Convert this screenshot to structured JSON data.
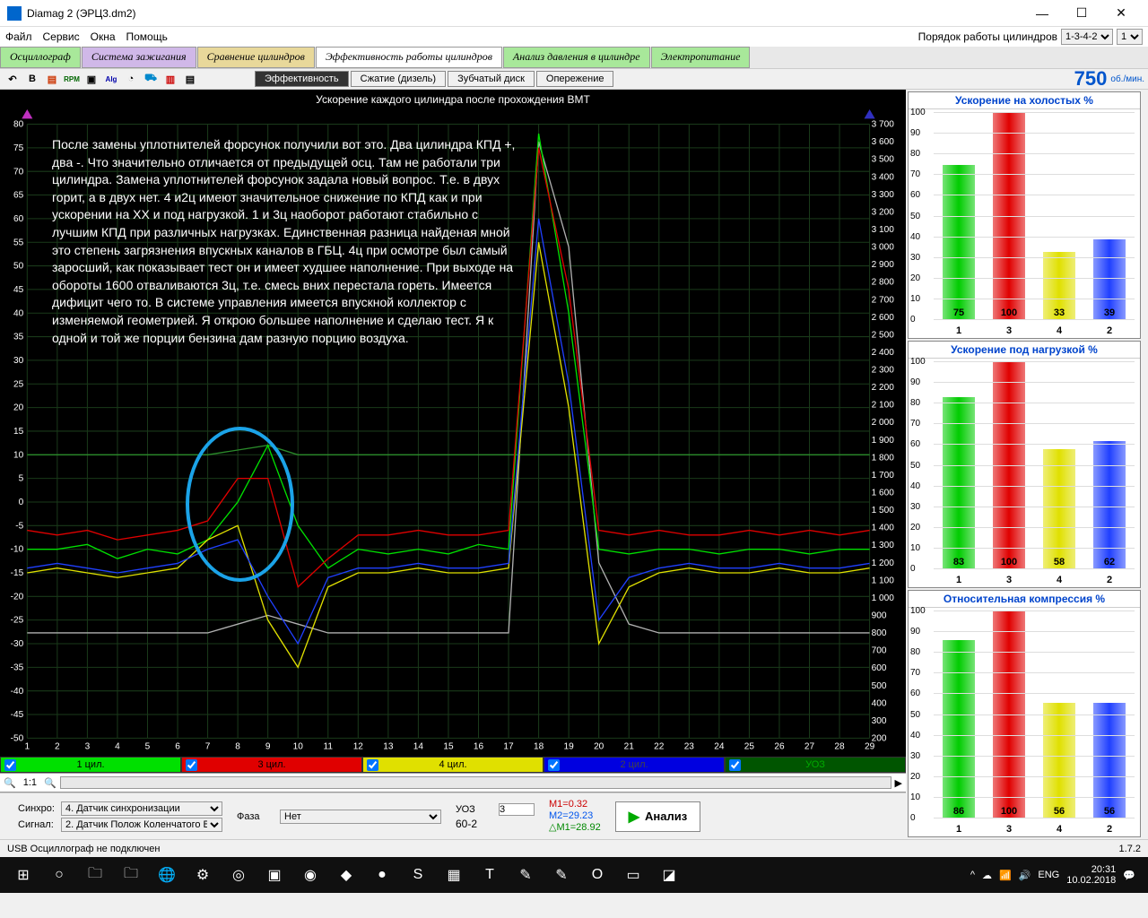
{
  "window": {
    "title": "Diamag 2 (ЭРЦ3.dm2)",
    "min": "—",
    "max": "☐",
    "close": "✕"
  },
  "menu": {
    "items": [
      "Файл",
      "Сервис",
      "Окна",
      "Помощь"
    ],
    "order_label": "Порядок работы цилиндров",
    "order_val": "1-3-4-2",
    "count": "1"
  },
  "tabs": {
    "items": [
      {
        "label": "Осциллограф",
        "color": "#a8e89a"
      },
      {
        "label": "Система зажигания",
        "color": "#d0b8e8"
      },
      {
        "label": "Сравнение цилиндров",
        "color": "#e8d89a"
      },
      {
        "label": "Эффективность работы цилиндров",
        "color": "#ffffff"
      },
      {
        "label": "Анализ давления в цилиндре",
        "color": "#a8e89a"
      },
      {
        "label": "Электропитание",
        "color": "#a8e89a"
      }
    ]
  },
  "subtabs": [
    "Эффективность",
    "Сжатие (дизель)",
    "Зубчатый диск",
    "Опережение"
  ],
  "rpm": {
    "value": "750",
    "unit": "об./мин."
  },
  "main_chart": {
    "title": "Ускорение каждого цилиндра после прохождения ВМТ",
    "y_left": {
      "min": -50,
      "max": 80,
      "step": 5
    },
    "y_right": {
      "min": 200,
      "max": 3700,
      "step": 100
    },
    "x": {
      "min": 1,
      "max": 29,
      "step": 1
    },
    "overlay_text": "После замены уплотнителей форсунок получили вот это. Два цилиндра КПД +, два -. Что значительно отличается от предыдущей осц. Там не работали три цилиндра. Замена уплотнителей форсунок задала новый вопрос. Т.е. в двух горит, а в двух нет. 4 и2ц имеют значительное снижение по КПД как и при ускорении на ХХ и под нагрузкой. 1 и 3ц наоборот работают стабильно с лучшим КПД при различных нагрузках. Единственная разница найденая мной это степень загрязнения впускных каналов в ГБЦ. 4ц при осмотре был самый заросший, как показывает тест он и имеет худшее наполнение. При выходе на обороты 1600 отваливаются 3ц, т.е. смесь вних перестала гореть. Имеется дифицит чего то. В системе управления имеется впускной коллектор с изменяемой геометрией. Я открою большее наполнение и сделаю тест. Я к одной и той же порции бензина дам разную порцию воздуха.",
    "ring": {
      "left_pct": 20.5,
      "top_pct": 49,
      "w_pct": 12,
      "h_pct": 24
    },
    "series": {
      "c1": {
        "color": "#00e000",
        "data": [
          -10,
          -10,
          -9,
          -12,
          -10,
          -11,
          -8,
          0,
          12,
          -5,
          -14,
          -10,
          -11,
          -10,
          -11,
          -9,
          -10,
          78,
          40,
          -10,
          -11,
          -10,
          -10,
          -11,
          -10,
          -10,
          -11,
          -10,
          -10
        ]
      },
      "c3": {
        "color": "#e00000",
        "data": [
          -6,
          -7,
          -6,
          -8,
          -7,
          -6,
          -4,
          5,
          5,
          -18,
          -12,
          -7,
          -7,
          -6,
          -7,
          -7,
          -6,
          75,
          45,
          -6,
          -7,
          -6,
          -7,
          -7,
          -6,
          -7,
          -6,
          -7,
          -6
        ]
      },
      "c4": {
        "color": "#e0e000",
        "data": [
          -15,
          -14,
          -15,
          -16,
          -15,
          -14,
          -8,
          -5,
          -25,
          -35,
          -18,
          -15,
          -15,
          -14,
          -15,
          -15,
          -14,
          55,
          20,
          -30,
          -18,
          -15,
          -14,
          -15,
          -15,
          -14,
          -15,
          -15,
          -14
        ]
      },
      "c2": {
        "color": "#2040ff",
        "data": [
          -14,
          -13,
          -14,
          -15,
          -14,
          -13,
          -10,
          -8,
          -20,
          -30,
          -16,
          -14,
          -14,
          -13,
          -14,
          -14,
          -13,
          60,
          25,
          -25,
          -16,
          -14,
          -13,
          -14,
          -14,
          -13,
          -14,
          -14,
          -13
        ]
      },
      "rpm": {
        "color": "#b0b0b0",
        "data": [
          800,
          800,
          800,
          800,
          800,
          800,
          800,
          850,
          900,
          850,
          800,
          800,
          800,
          800,
          800,
          800,
          800,
          3600,
          3000,
          1200,
          850,
          800,
          800,
          800,
          800,
          800,
          800,
          800,
          800
        ]
      },
      "uoz_g": {
        "color": "#2a8a2a",
        "data": [
          10,
          10,
          10,
          10,
          10,
          10,
          10,
          11,
          12,
          10,
          10,
          10,
          10,
          10,
          10,
          10,
          10,
          10,
          10,
          10,
          10,
          10,
          10,
          10,
          10,
          10,
          10,
          10,
          10
        ]
      }
    }
  },
  "legend": [
    {
      "label": "1 цил.",
      "class": "legend-c1"
    },
    {
      "label": "3 цил.",
      "class": "legend-c3"
    },
    {
      "label": "4 цил.",
      "class": "legend-c4"
    },
    {
      "label": "2 цил.",
      "class": "legend-c2"
    },
    {
      "label": "УОЗ",
      "class": "legend-uoz"
    }
  ],
  "ruler": {
    "zoom": "1:1"
  },
  "bar_panels": [
    {
      "title": "Ускорение на холостых %",
      "cats": [
        "1",
        "3",
        "4",
        "2"
      ],
      "vals": [
        75,
        100,
        33,
        39
      ],
      "colors": [
        "#00cc00",
        "#e00000",
        "#e0e000",
        "#2040ff"
      ]
    },
    {
      "title": "Ускорение под нагрузкой %",
      "cats": [
        "1",
        "3",
        "4",
        "2"
      ],
      "vals": [
        83,
        100,
        58,
        62
      ],
      "colors": [
        "#00cc00",
        "#e00000",
        "#e0e000",
        "#2040ff"
      ]
    },
    {
      "title": "Относительная компрессия %",
      "cats": [
        "1",
        "3",
        "4",
        "2"
      ],
      "vals": [
        86,
        100,
        56,
        56
      ],
      "colors": [
        "#00cc00",
        "#e00000",
        "#e0e000",
        "#2040ff"
      ]
    }
  ],
  "bottom": {
    "sync_label": "Синхро:",
    "sync_val": "4. Датчик синхронизации",
    "signal_label": "Сигнал:",
    "signal_val": "2. Датчик Полож Коленчатого Вал",
    "phase_label": "Фаза",
    "phase_val": "Нет",
    "uoz_label": "УОЗ",
    "uoz_val": "3",
    "teeth": "60-2",
    "m1": "M1=0.32",
    "m2": "M2=29.23",
    "dm": "△M1=28.92",
    "analyze": "Анализ"
  },
  "status": {
    "left": "USB Осциллограф не подключен",
    "right": "1.7.2"
  },
  "taskbar": {
    "icons": [
      "⊞",
      "○",
      "🗀",
      "🗀",
      "🌐",
      "⚙",
      "◎",
      "▣",
      "◉",
      "◆",
      "●",
      "S",
      "▦",
      "T",
      "✎",
      "✎",
      "O",
      "▭",
      "◪"
    ],
    "tray": {
      "lang": "ENG",
      "time": "20:31",
      "date": "10.02.2018"
    }
  }
}
